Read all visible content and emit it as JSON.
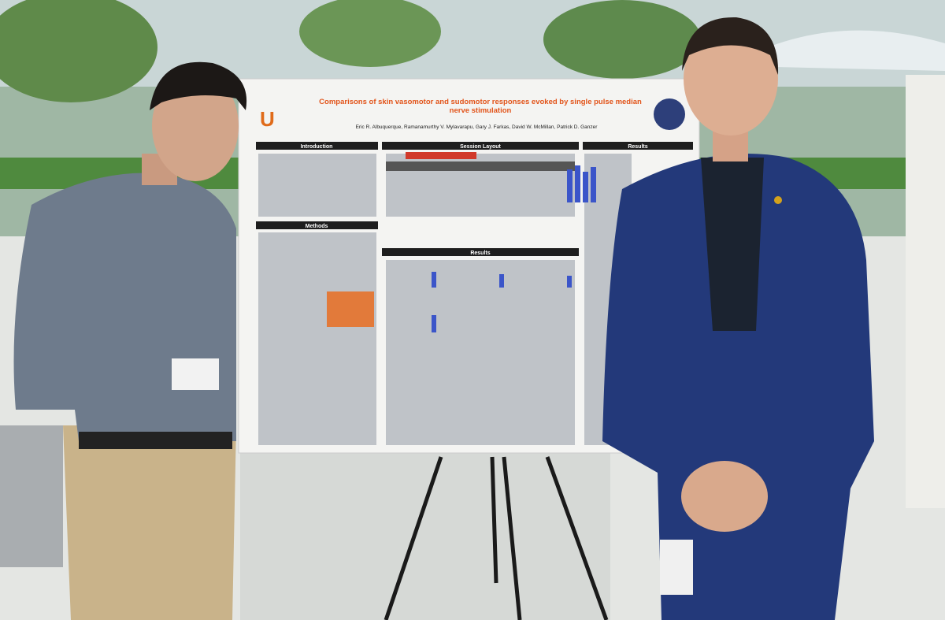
{
  "poster": {
    "title": "Comparisons of skin vasomotor and sudomotor responses evoked by single pulse median nerve stimulation",
    "authors": "Eric R. Albuquerque, Ramanamurthy V. Mylavarapu, Gary J. Farkas, David W. McMillan, Patrick D. Ganzer",
    "sections": [
      "Introduction",
      "Session Layout",
      "Results",
      "Methods",
      "Results"
    ]
  }
}
